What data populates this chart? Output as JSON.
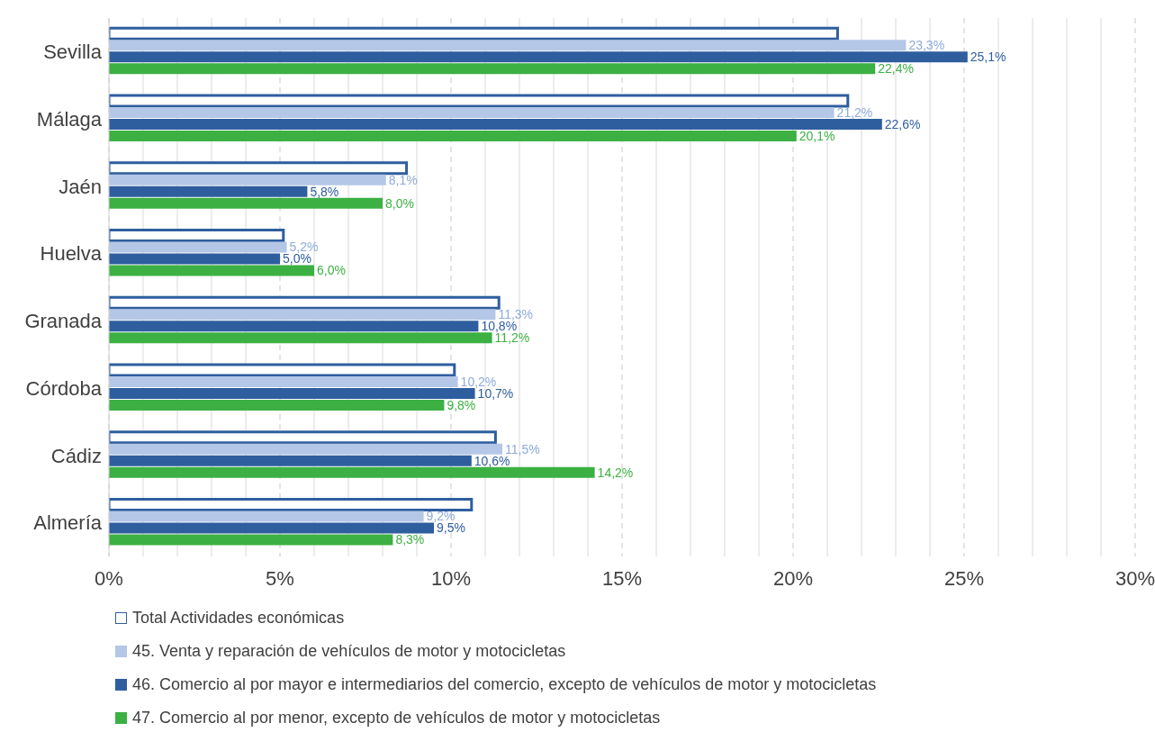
{
  "chart_data": {
    "type": "bar",
    "orientation": "horizontal",
    "categories": [
      "Sevilla",
      "Málaga",
      "Jaén",
      "Huelva",
      "Granada",
      "Córdoba",
      "Cádiz",
      "Almería"
    ],
    "series": [
      {
        "name": "Total Actividades económicas",
        "color": "#ffffff",
        "values": [
          21.3,
          21.6,
          8.7,
          5.1,
          11.4,
          10.1,
          11.3,
          10.6
        ]
      },
      {
        "name": "45. Venta y reparación de vehículos de motor y motocicletas",
        "color": "#b4c7e7",
        "values": [
          23.3,
          21.2,
          8.1,
          5.2,
          11.3,
          10.2,
          11.5,
          9.2
        ],
        "value_labels": [
          "23,3%",
          "21,2%",
          "8,1%",
          "5,2%",
          "11,3%",
          "10,2%",
          "11,5%",
          "9,2%"
        ]
      },
      {
        "name": "46. Comercio al por mayor e intermediarios del comercio, excepto de vehículos de motor y motocicletas",
        "color": "#2e5e9e",
        "values": [
          25.1,
          22.6,
          5.8,
          5.0,
          10.8,
          10.7,
          10.6,
          9.5
        ],
        "value_labels": [
          "25,1%",
          "22,6%",
          "5,8%",
          "5,0%",
          "10,8%",
          "10,7%",
          "10,6%",
          "9,5%"
        ]
      },
      {
        "name": "47. Comercio al por menor, excepto de vehículos de motor y motocicletas",
        "color": "#3cb043",
        "values": [
          22.4,
          20.1,
          8.0,
          6.0,
          11.2,
          9.8,
          14.2,
          8.3
        ],
        "value_labels": [
          "22,4%",
          "20,1%",
          "8,0%",
          "6,0%",
          "11,2%",
          "9,8%",
          "14,2%",
          "8,3%"
        ]
      }
    ],
    "xlim": [
      0,
      30
    ],
    "xticks": [
      {
        "value": 0,
        "label": "0%"
      },
      {
        "value": 1,
        "label": null
      },
      {
        "value": 2,
        "label": null
      },
      {
        "value": 3,
        "label": null
      },
      {
        "value": 4,
        "label": null
      },
      {
        "value": 5,
        "label": "5%"
      },
      {
        "value": 6,
        "label": null
      },
      {
        "value": 7,
        "label": null
      },
      {
        "value": 8,
        "label": null
      },
      {
        "value": 9,
        "label": null
      },
      {
        "value": 10,
        "label": "10%"
      },
      {
        "value": 11,
        "label": null
      },
      {
        "value": 12,
        "label": null
      },
      {
        "value": 13,
        "label": null
      },
      {
        "value": 14,
        "label": null
      },
      {
        "value": 15,
        "label": "15%"
      },
      {
        "value": 16,
        "label": null
      },
      {
        "value": 17,
        "label": null
      },
      {
        "value": 18,
        "label": null
      },
      {
        "value": 19,
        "label": null
      },
      {
        "value": 20,
        "label": "20%"
      },
      {
        "value": 21,
        "label": null
      },
      {
        "value": 22,
        "label": null
      },
      {
        "value": 23,
        "label": null
      },
      {
        "value": 24,
        "label": null
      },
      {
        "value": 25,
        "label": "25%"
      },
      {
        "value": 26,
        "label": null
      },
      {
        "value": 27,
        "label": null
      },
      {
        "value": 28,
        "label": null
      },
      {
        "value": 29,
        "label": null
      },
      {
        "value": 30,
        "label": "30%"
      }
    ],
    "grid": "x",
    "legend": "bottom"
  }
}
